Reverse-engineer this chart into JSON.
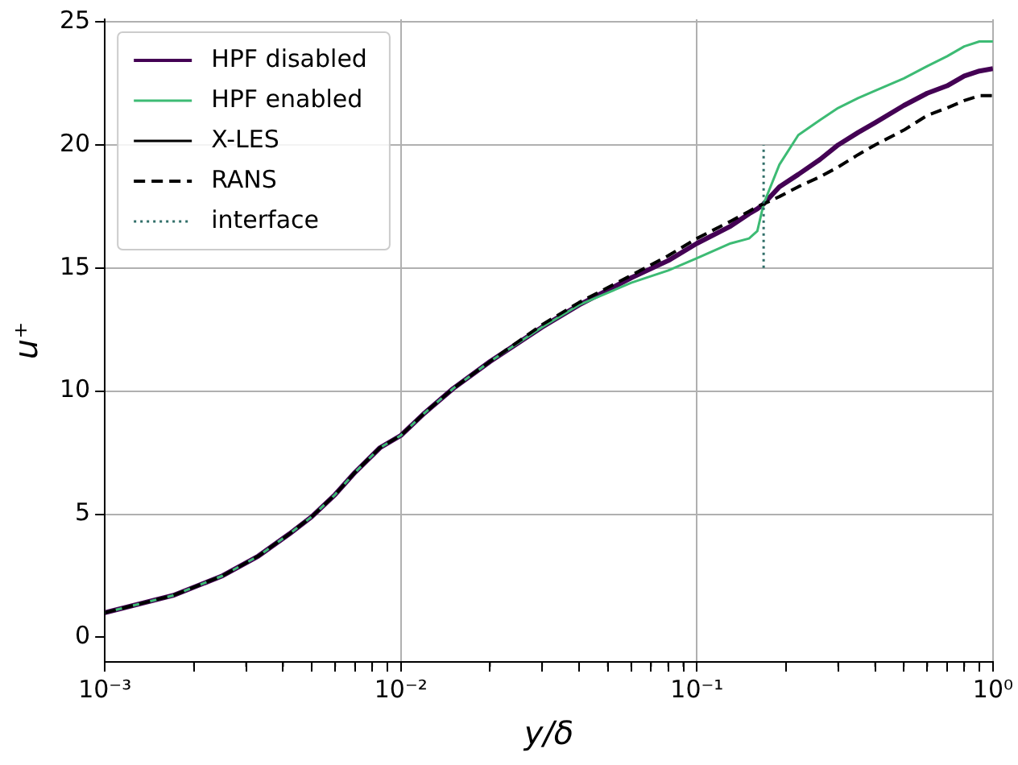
{
  "chart_data": {
    "type": "line",
    "xlabel": "y/δ",
    "ylabel": "u⁺",
    "log": "x",
    "x": [
      0.001,
      0.0017,
      0.0025,
      0.0033,
      0.0042,
      0.005,
      0.006,
      0.007,
      0.0085,
      0.01,
      0.012,
      0.015,
      0.02,
      0.03,
      0.04,
      0.06,
      0.08,
      0.1,
      0.13,
      0.15,
      0.16,
      0.168,
      0.19,
      0.22,
      0.26,
      0.3,
      0.35,
      0.4,
      0.5,
      0.6,
      0.7,
      0.8,
      0.9,
      1.0
    ],
    "xlim": [
      0.001,
      1
    ],
    "xticks": [
      {
        "value": 0.001,
        "label": "10⁻³"
      },
      {
        "value": 0.002,
        "label": null
      },
      {
        "value": 0.003,
        "label": null
      },
      {
        "value": 0.004,
        "label": null
      },
      {
        "value": 0.005,
        "label": null
      },
      {
        "value": 0.006,
        "label": null
      },
      {
        "value": 0.007,
        "label": null
      },
      {
        "value": 0.008,
        "label": null
      },
      {
        "value": 0.009,
        "label": null
      },
      {
        "value": 0.01,
        "label": "10⁻²"
      },
      {
        "value": 0.02,
        "label": null
      },
      {
        "value": 0.03,
        "label": null
      },
      {
        "value": 0.04,
        "label": null
      },
      {
        "value": 0.05,
        "label": null
      },
      {
        "value": 0.06,
        "label": null
      },
      {
        "value": 0.07,
        "label": null
      },
      {
        "value": 0.08,
        "label": null
      },
      {
        "value": 0.09,
        "label": null
      },
      {
        "value": 0.1,
        "label": "10⁻¹"
      },
      {
        "value": 0.2,
        "label": null
      },
      {
        "value": 0.3,
        "label": null
      },
      {
        "value": 0.4,
        "label": null
      },
      {
        "value": 0.5,
        "label": null
      },
      {
        "value": 0.6,
        "label": null
      },
      {
        "value": 0.7,
        "label": null
      },
      {
        "value": 0.8,
        "label": null
      },
      {
        "value": 0.9,
        "label": null
      },
      {
        "value": 1,
        "label": "10⁰"
      }
    ],
    "ylim": [
      -1,
      25.1
    ],
    "yticks": [
      0,
      5,
      10,
      15,
      20,
      25
    ],
    "grid": true,
    "legend": "top left",
    "marker": "none",
    "series": [
      {
        "name": "HPF disabled",
        "color": "#440154",
        "line_style": "solid",
        "values": [
          1.0,
          1.7,
          2.5,
          3.3,
          4.2,
          4.9,
          5.8,
          6.7,
          7.7,
          8.2,
          9.1,
          10.1,
          11.2,
          12.6,
          13.5,
          14.6,
          15.3,
          16.0,
          16.7,
          17.2,
          17.4,
          17.6,
          18.3,
          18.8,
          19.4,
          20.0,
          20.5,
          20.9,
          21.6,
          22.1,
          22.4,
          22.8,
          23.0,
          23.1
        ]
      },
      {
        "name": "HPF enabled",
        "color": "#3dbb74",
        "line_style": "solid",
        "values": [
          1.0,
          1.7,
          2.5,
          3.3,
          4.2,
          4.9,
          5.8,
          6.7,
          7.7,
          8.2,
          9.1,
          10.1,
          11.2,
          12.6,
          13.5,
          14.4,
          14.9,
          15.4,
          16.0,
          16.2,
          16.5,
          17.6,
          19.2,
          20.4,
          21.0,
          21.5,
          21.9,
          22.2,
          22.7,
          23.2,
          23.6,
          24.0,
          24.2,
          24.2
        ]
      },
      {
        "name": "X-LES",
        "color": "#000000",
        "line_style": "solid",
        "values": [
          null,
          null,
          null,
          null,
          null,
          null,
          null,
          null,
          null,
          null,
          null,
          null,
          null,
          null,
          null,
          null,
          null,
          null,
          null,
          null,
          null,
          null,
          null,
          null,
          null,
          null,
          null,
          null,
          null,
          null,
          null,
          null,
          null,
          null
        ]
      },
      {
        "name": "RANS",
        "color": "#000000",
        "line_style": "dashed",
        "values": [
          1.0,
          1.7,
          2.5,
          3.3,
          4.2,
          4.9,
          5.8,
          6.7,
          7.7,
          8.2,
          9.1,
          10.1,
          11.2,
          12.7,
          13.6,
          14.7,
          15.5,
          16.2,
          16.9,
          17.3,
          17.5,
          17.6,
          17.9,
          18.3,
          18.7,
          19.1,
          19.6,
          20.0,
          20.6,
          21.2,
          21.5,
          21.8,
          22.0,
          22.0
        ]
      },
      {
        "name": "interface",
        "color": "#306e68",
        "line_style": "dotted",
        "x": [
          0.168,
          0.168
        ],
        "values": [
          15,
          20
        ]
      }
    ]
  }
}
